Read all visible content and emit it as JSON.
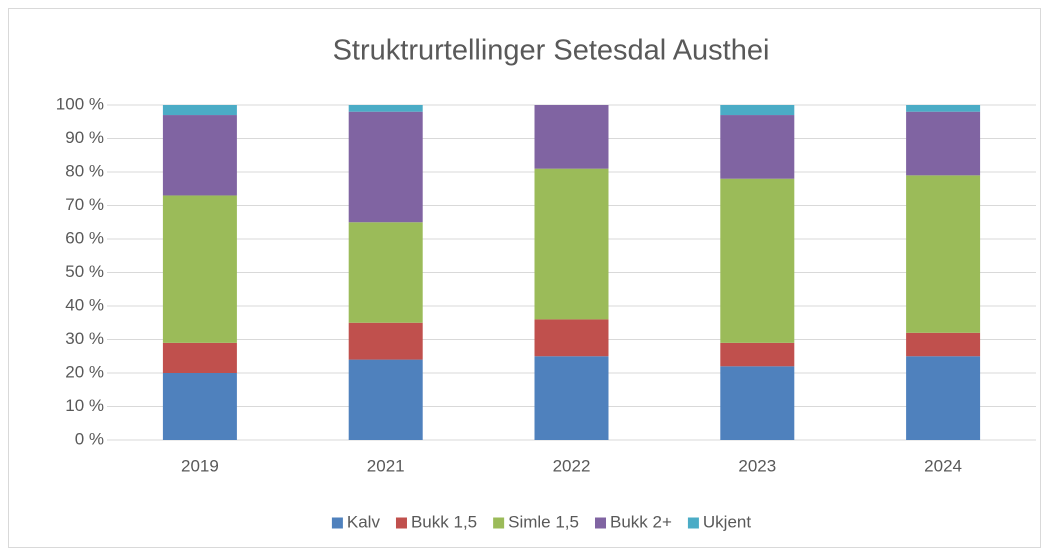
{
  "chart_data": {
    "type": "stacked_bar_100",
    "title": "Struktrurtellinger Setesdal Austhei",
    "categories": [
      "2019",
      "2021",
      "2022",
      "2023",
      "2024"
    ],
    "series": [
      {
        "name": "Kalv",
        "color": "#4f81bd",
        "values": [
          20,
          24,
          25,
          22,
          25
        ]
      },
      {
        "name": "Bukk 1,5",
        "color": "#c0504d",
        "values": [
          9,
          11,
          11,
          7,
          7
        ]
      },
      {
        "name": "Simle 1,5",
        "color": "#9bbb59",
        "values": [
          44,
          30,
          45,
          49,
          47
        ]
      },
      {
        "name": "Bukk 2+",
        "color": "#8064a2",
        "values": [
          24,
          33,
          19,
          19,
          19
        ]
      },
      {
        "name": "Ukjent",
        "color": "#4bacc6",
        "values": [
          3,
          2,
          0,
          3,
          2
        ]
      }
    ],
    "ylim": [
      0,
      100
    ],
    "yticks": [
      {
        "value": 0,
        "label": "0 %"
      },
      {
        "value": 10,
        "label": "10 %"
      },
      {
        "value": 20,
        "label": "20 %"
      },
      {
        "value": 30,
        "label": "30 %"
      },
      {
        "value": 40,
        "label": "40 %"
      },
      {
        "value": 50,
        "label": "50 %"
      },
      {
        "value": 60,
        "label": "60 %"
      },
      {
        "value": 70,
        "label": "70 %"
      },
      {
        "value": 80,
        "label": "80 %"
      },
      {
        "value": 90,
        "label": "90 %"
      },
      {
        "value": 100,
        "label": "100 %"
      }
    ],
    "grid": true,
    "legend": "bottom"
  }
}
